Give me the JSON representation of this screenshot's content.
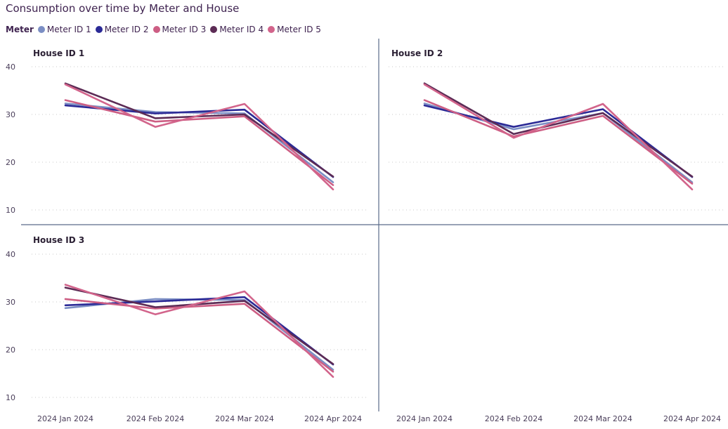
{
  "chart_data": {
    "type": "line",
    "title": "Consumption over time by Meter and House",
    "legend": {
      "title": "Meter",
      "placement": "top-left"
    },
    "x": [
      "2024 Jan 2024",
      "2024 Feb 2024",
      "2024 Mar 2024",
      "2024 Apr 2024"
    ],
    "y_ticks": [
      10,
      20,
      30,
      40
    ],
    "ylim": [
      7,
      43
    ],
    "grid": true,
    "meters": [
      {
        "name": "Meter ID 1",
        "color": "#7b8ec4"
      },
      {
        "name": "Meter ID 2",
        "color": "#2b2a96"
      },
      {
        "name": "Meter ID 3",
        "color": "#cd5e84"
      },
      {
        "name": "Meter ID 4",
        "color": "#5c2b55"
      },
      {
        "name": "Meter ID 5",
        "color": "#d2648b"
      }
    ],
    "panels": [
      {
        "title": "House ID 1",
        "series": [
          {
            "name": "Meter ID 1",
            "values": [
              32.3,
              30.5,
              30.2,
              15.8
            ]
          },
          {
            "name": "Meter ID 2",
            "values": [
              31.9,
              30.2,
              31.0,
              16.9
            ]
          },
          {
            "name": "Meter ID 3",
            "values": [
              33.0,
              28.5,
              29.6,
              15.2
            ]
          },
          {
            "name": "Meter ID 4",
            "values": [
              36.5,
              29.2,
              30.0,
              17.0
            ]
          },
          {
            "name": "Meter ID 5",
            "values": [
              36.3,
              27.4,
              32.2,
              14.3
            ]
          }
        ]
      },
      {
        "title": "House ID 2",
        "series": [
          {
            "name": "Meter ID 1",
            "values": [
              32.3,
              26.9,
              30.3,
              15.8
            ]
          },
          {
            "name": "Meter ID 2",
            "values": [
              31.9,
              27.4,
              31.1,
              16.9
            ]
          },
          {
            "name": "Meter ID 3",
            "values": [
              33.0,
              25.4,
              29.7,
              15.5
            ]
          },
          {
            "name": "Meter ID 4",
            "values": [
              36.5,
              25.9,
              30.3,
              17.0
            ]
          },
          {
            "name": "Meter ID 5",
            "values": [
              36.3,
              25.1,
              32.2,
              14.3
            ]
          }
        ]
      },
      {
        "title": "House ID 3",
        "series": [
          {
            "name": "Meter ID 1",
            "values": [
              28.7,
              30.6,
              30.4,
              15.8
            ]
          },
          {
            "name": "Meter ID 2",
            "values": [
              29.3,
              30.1,
              31.0,
              16.9
            ]
          },
          {
            "name": "Meter ID 3",
            "values": [
              30.6,
              28.6,
              29.6,
              15.4
            ]
          },
          {
            "name": "Meter ID 4",
            "values": [
              33.0,
              28.9,
              30.2,
              17.0
            ]
          },
          {
            "name": "Meter ID 5",
            "values": [
              33.6,
              27.4,
              32.2,
              14.3
            ]
          }
        ]
      }
    ]
  }
}
